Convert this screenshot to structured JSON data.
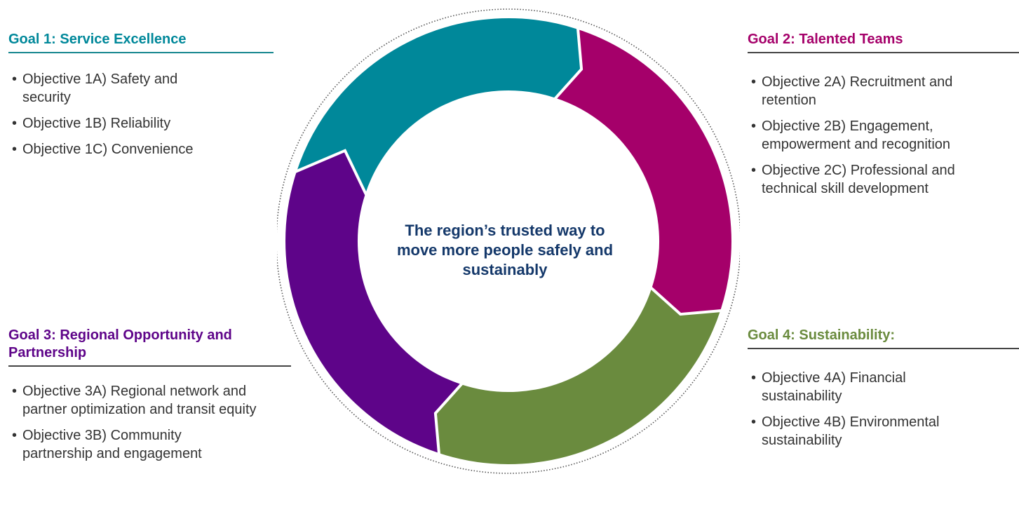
{
  "colors": {
    "goal1": "#00889a",
    "goal2": "#a5006a",
    "goal3": "#5e0489",
    "goal4": "#6a8b3e",
    "center_text": "#14386a",
    "rule": "#444444",
    "text": "#333333"
  },
  "center": {
    "statement": "The region’s trusted way to move more people safely and sustainably"
  },
  "goals": [
    {
      "title": "Goal 1: Service Excellence",
      "objectives": [
        "Objective 1A) Safety and security",
        "Objective 1B) Reliability",
        "Objective 1C) Convenience"
      ]
    },
    {
      "title": "Goal 2: Talented Teams",
      "objectives": [
        "Objective 2A) Recruitment and retention",
        "Objective 2B) Engagement, empowerment and recognition",
        "Objective 2C) Professional and technical skill development"
      ]
    },
    {
      "title": "Goal 3: Regional Opportunity and Partnership",
      "objectives": [
        "Objective 3A) Regional network and partner optimization and transit equity",
        "Objective 3B) Community partnership and engagement"
      ]
    },
    {
      "title": "Goal 4: Sustainability:",
      "objectives": [
        "Objective 4A) Financial sustainability",
        "Objective 4B) Environmental sustainability"
      ]
    }
  ]
}
